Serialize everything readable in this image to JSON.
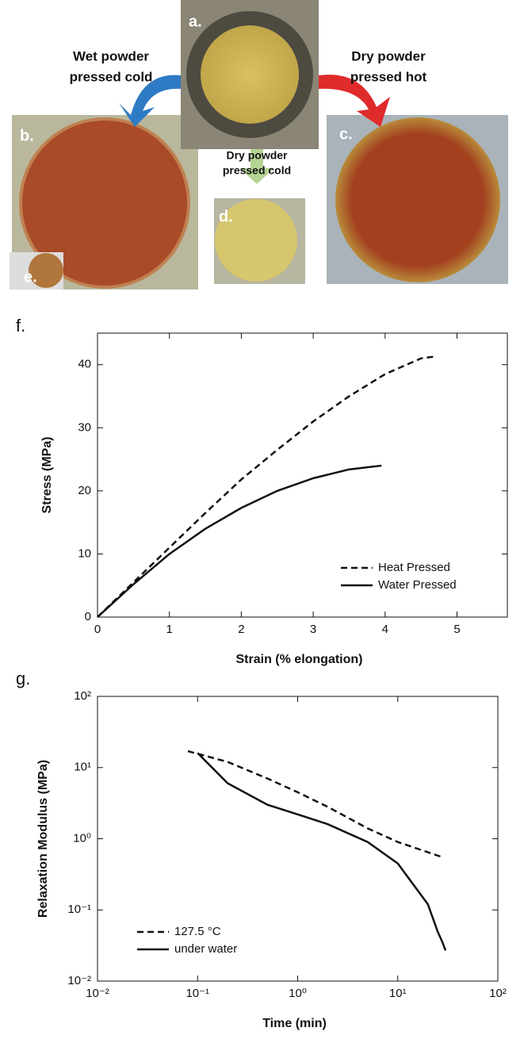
{
  "photo_panel": {
    "labels": [
      "a.",
      "b.",
      "c.",
      "d.",
      "e."
    ],
    "wet_cold": [
      "Wet powder",
      "pressed cold"
    ],
    "dry_hot": [
      "Dry powder",
      "pressed hot"
    ],
    "dry_cold": [
      "Dry powder",
      "pressed cold"
    ]
  },
  "chart_data": [
    {
      "type": "line",
      "panel_label": "f.",
      "x_label": "Strain (% elongation)",
      "y_label": "Stress (MPa)",
      "xlim": [
        0,
        5.7
      ],
      "ylim": [
        0,
        45
      ],
      "xticks": [
        0,
        1,
        2,
        3,
        4,
        5
      ],
      "yticks": [
        0,
        10,
        20,
        30,
        40
      ],
      "log": false,
      "legend": "lower right",
      "series": [
        {
          "name": "Heat Pressed",
          "color": "#111111",
          "dash": true,
          "x": [
            0,
            0.5,
            1,
            1.5,
            2,
            2.5,
            3,
            3.5,
            4,
            4.5,
            4.7
          ],
          "values": [
            0,
            5.5,
            11,
            16.5,
            21.8,
            26.5,
            31,
            35,
            38.5,
            41,
            41.3
          ]
        },
        {
          "name": "Water Pressed",
          "color": "#111111",
          "dash": false,
          "x": [
            0,
            0.5,
            1,
            1.5,
            2,
            2.5,
            3,
            3.5,
            3.95
          ],
          "values": [
            0,
            5.2,
            10,
            14,
            17.3,
            20,
            22,
            23.4,
            24
          ]
        }
      ]
    },
    {
      "type": "line",
      "panel_label": "g.",
      "x_label": "Time (min)",
      "y_label": "Relaxation Modulus (MPa)",
      "xlim": [
        0.01,
        100
      ],
      "ylim": [
        0.01,
        100
      ],
      "xticks": [
        {
          "value": 0.01,
          "label": "10⁻²"
        },
        {
          "value": 0.1,
          "label": "10⁻¹"
        },
        {
          "value": 1,
          "label": "10⁰"
        },
        {
          "value": 10,
          "label": "10¹"
        },
        {
          "value": 100,
          "label": "10²"
        }
      ],
      "yticks": [
        {
          "value": 0.01,
          "label": "10⁻²"
        },
        {
          "value": 0.1,
          "label": "10⁻¹"
        },
        {
          "value": 1,
          "label": "10⁰"
        },
        {
          "value": 10,
          "label": "10¹"
        },
        {
          "value": 100,
          "label": "10²"
        }
      ],
      "log": true,
      "legend": "lower left",
      "series": [
        {
          "name": "127.5  °C",
          "color": "#111111",
          "dash": true,
          "x": [
            0.08,
            0.2,
            0.5,
            1,
            2,
            5,
            10,
            28
          ],
          "values": [
            17,
            12,
            7,
            4.5,
            2.8,
            1.4,
            0.9,
            0.55
          ]
        },
        {
          "name": "under water",
          "color": "#111111",
          "dash": false,
          "x": [
            0.1,
            0.2,
            0.5,
            1,
            2,
            5,
            10,
            20,
            25,
            28,
            30
          ],
          "values": [
            16,
            6,
            3,
            2.2,
            1.6,
            0.9,
            0.45,
            0.12,
            0.05,
            0.035,
            0.027
          ]
        }
      ]
    }
  ]
}
